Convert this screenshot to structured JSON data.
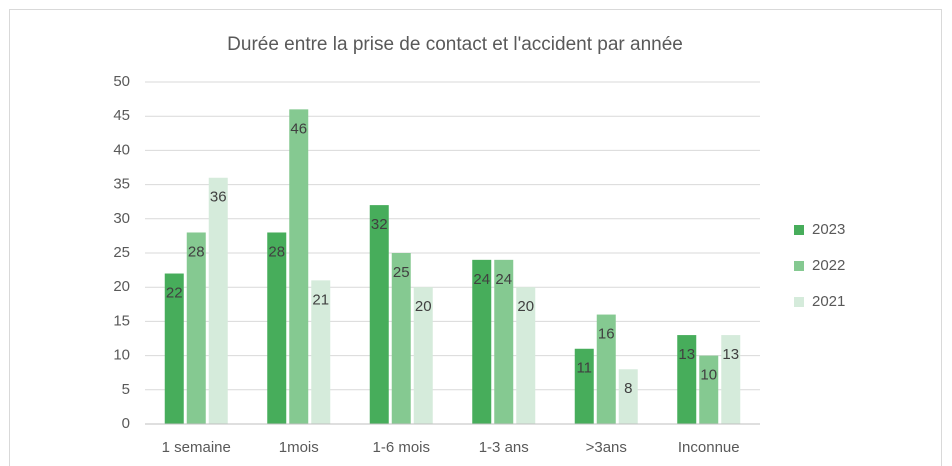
{
  "chart_data": {
    "type": "bar",
    "title": "Durée entre la prise de contact et l'accident par année",
    "categories": [
      "1 semaine",
      "1mois",
      "1-6 mois",
      "1-3 ans",
      ">3ans",
      "Inconnue"
    ],
    "series": [
      {
        "name": "2023",
        "color": "#47ad5b",
        "values": [
          22,
          28,
          32,
          24,
          11,
          13
        ]
      },
      {
        "name": "2022",
        "color": "#85c991",
        "values": [
          28,
          46,
          25,
          24,
          16,
          10
        ]
      },
      {
        "name": "2021",
        "color": "#d5ebdb",
        "values": [
          36,
          21,
          20,
          20,
          8,
          13
        ]
      }
    ],
    "ylim": [
      0,
      50
    ],
    "yticks": [
      0,
      5,
      10,
      15,
      20,
      25,
      30,
      35,
      40,
      45,
      50
    ],
    "grid": true,
    "legend": "right",
    "data_labels": true
  }
}
